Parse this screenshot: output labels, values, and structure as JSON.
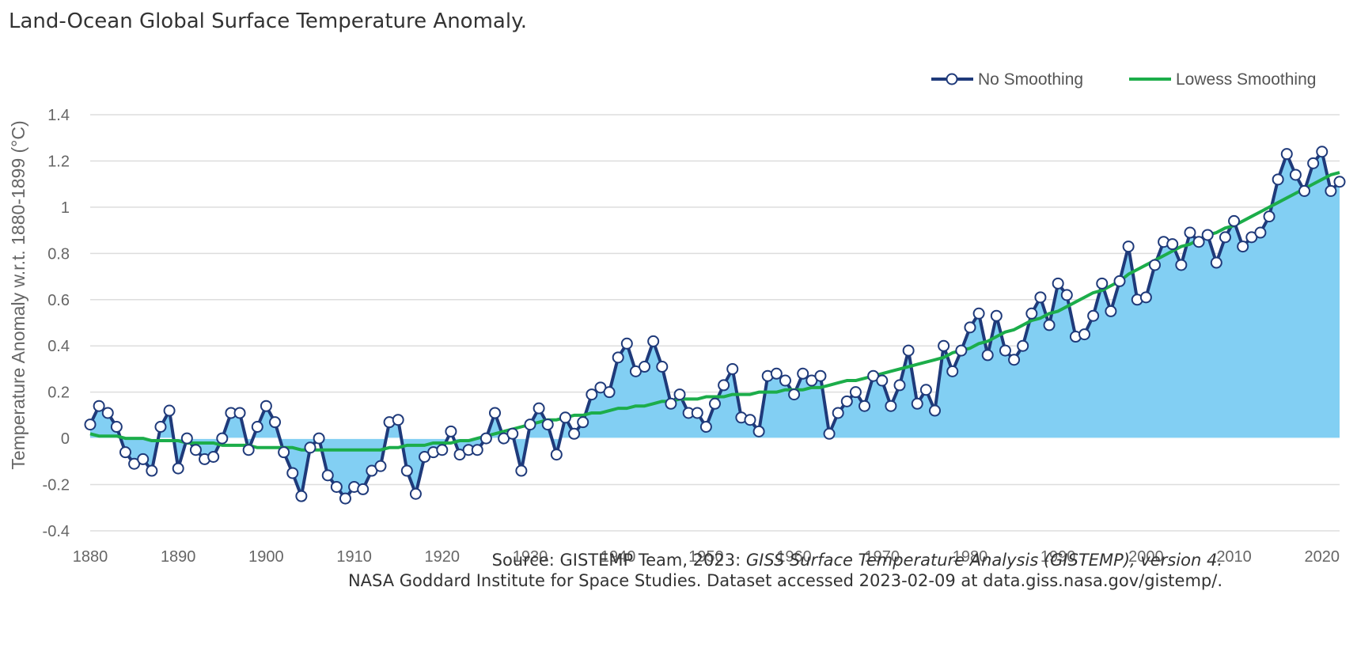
{
  "title": "Land-Ocean Global Surface Temperature Anomaly.",
  "source": {
    "line1_prefix": "Source: GISTEMP Team, 2023: ",
    "line1_italic": "GISS Surface Temperature Analysis (GISTEMP), version 4.",
    "line2": "NASA Goddard Institute for Space Studies. Dataset accessed 2023-02-09 at data.giss.nasa.gov/gistemp/."
  },
  "chart_data": {
    "type": "line",
    "xlabel": "",
    "ylabel": "Temperature Anomaly w.r.t. 1880-1899 (°C)",
    "xlim": [
      1880,
      2022
    ],
    "ylim": [
      -0.4,
      1.4
    ],
    "x_ticks": [
      "1880",
      "1890",
      "1900",
      "1910",
      "1920",
      "1930",
      "1940",
      "1950",
      "1960",
      "1970",
      "1980",
      "1990",
      "2000",
      "2010",
      "2020"
    ],
    "y_ticks": [
      "1.4",
      "1.2",
      "1",
      "0.8",
      "0.6",
      "0.4",
      "0.2",
      "0",
      "-0.2",
      "-0.4"
    ],
    "legend_position": "top-right",
    "grid": true,
    "colors": {
      "raw_line": "#1f3a7a",
      "fill": "#82cff3",
      "smooth_line": "#1cad4a",
      "grid": "#dddddd",
      "marker_fill": "#ffffff"
    },
    "x": [
      1880,
      1881,
      1882,
      1883,
      1884,
      1885,
      1886,
      1887,
      1888,
      1889,
      1890,
      1891,
      1892,
      1893,
      1894,
      1895,
      1896,
      1897,
      1898,
      1899,
      1900,
      1901,
      1902,
      1903,
      1904,
      1905,
      1906,
      1907,
      1908,
      1909,
      1910,
      1911,
      1912,
      1913,
      1914,
      1915,
      1916,
      1917,
      1918,
      1919,
      1920,
      1921,
      1922,
      1923,
      1924,
      1925,
      1926,
      1927,
      1928,
      1929,
      1930,
      1931,
      1932,
      1933,
      1934,
      1935,
      1936,
      1937,
      1938,
      1939,
      1940,
      1941,
      1942,
      1943,
      1944,
      1945,
      1946,
      1947,
      1948,
      1949,
      1950,
      1951,
      1952,
      1953,
      1954,
      1955,
      1956,
      1957,
      1958,
      1959,
      1960,
      1961,
      1962,
      1963,
      1964,
      1965,
      1966,
      1967,
      1968,
      1969,
      1970,
      1971,
      1972,
      1973,
      1974,
      1975,
      1976,
      1977,
      1978,
      1979,
      1980,
      1981,
      1982,
      1983,
      1984,
      1985,
      1986,
      1987,
      1988,
      1989,
      1990,
      1991,
      1992,
      1993,
      1994,
      1995,
      1996,
      1997,
      1998,
      1999,
      2000,
      2001,
      2002,
      2003,
      2004,
      2005,
      2006,
      2007,
      2008,
      2009,
      2010,
      2011,
      2012,
      2013,
      2014,
      2015,
      2016,
      2017,
      2018,
      2019,
      2020,
      2021,
      2022
    ],
    "series": [
      {
        "name": "No Smoothing",
        "values": [
          0.06,
          0.14,
          0.11,
          0.05,
          -0.06,
          -0.11,
          -0.09,
          -0.14,
          0.05,
          0.12,
          -0.13,
          0.0,
          -0.05,
          -0.09,
          -0.08,
          0.0,
          0.11,
          0.11,
          -0.05,
          0.05,
          0.14,
          0.07,
          -0.06,
          -0.15,
          -0.25,
          -0.04,
          0.0,
          -0.16,
          -0.21,
          -0.26,
          -0.21,
          -0.22,
          -0.14,
          -0.12,
          0.07,
          0.08,
          -0.14,
          -0.24,
          -0.08,
          -0.06,
          -0.05,
          0.03,
          -0.07,
          -0.05,
          -0.05,
          0.0,
          0.11,
          0.0,
          0.02,
          -0.14,
          0.06,
          0.13,
          0.06,
          -0.07,
          0.09,
          0.02,
          0.07,
          0.19,
          0.22,
          0.2,
          0.35,
          0.41,
          0.29,
          0.31,
          0.42,
          0.31,
          0.15,
          0.19,
          0.11,
          0.11,
          0.05,
          0.15,
          0.23,
          0.3,
          0.09,
          0.08,
          0.03,
          0.27,
          0.28,
          0.25,
          0.19,
          0.28,
          0.25,
          0.27,
          0.02,
          0.11,
          0.16,
          0.2,
          0.14,
          0.27,
          0.25,
          0.14,
          0.23,
          0.38,
          0.15,
          0.21,
          0.12,
          0.4,
          0.29,
          0.38,
          0.48,
          0.54,
          0.36,
          0.53,
          0.38,
          0.34,
          0.4,
          0.54,
          0.61,
          0.49,
          0.67,
          0.62,
          0.44,
          0.45,
          0.53,
          0.67,
          0.55,
          0.68,
          0.83,
          0.6,
          0.61,
          0.75,
          0.85,
          0.84,
          0.75,
          0.89,
          0.85,
          0.88,
          0.76,
          0.87,
          0.94,
          0.83,
          0.87,
          0.89,
          0.96,
          1.12,
          1.23,
          1.14,
          1.07,
          1.19,
          1.24,
          1.07,
          1.11
        ]
      },
      {
        "name": "Lowess Smoothing",
        "values": [
          0.02,
          0.01,
          0.01,
          0.01,
          0.0,
          0.0,
          0.0,
          -0.01,
          -0.01,
          -0.01,
          -0.01,
          -0.02,
          -0.02,
          -0.02,
          -0.02,
          -0.03,
          -0.03,
          -0.03,
          -0.03,
          -0.04,
          -0.04,
          -0.04,
          -0.04,
          -0.04,
          -0.05,
          -0.05,
          -0.05,
          -0.05,
          -0.05,
          -0.05,
          -0.05,
          -0.05,
          -0.05,
          -0.05,
          -0.04,
          -0.04,
          -0.03,
          -0.03,
          -0.03,
          -0.02,
          -0.02,
          -0.02,
          -0.01,
          -0.01,
          0.0,
          0.01,
          0.02,
          0.03,
          0.04,
          0.05,
          0.06,
          0.07,
          0.08,
          0.08,
          0.09,
          0.1,
          0.1,
          0.11,
          0.11,
          0.12,
          0.13,
          0.13,
          0.14,
          0.14,
          0.15,
          0.16,
          0.16,
          0.17,
          0.17,
          0.17,
          0.18,
          0.18,
          0.18,
          0.19,
          0.19,
          0.19,
          0.2,
          0.2,
          0.2,
          0.21,
          0.21,
          0.21,
          0.22,
          0.22,
          0.23,
          0.24,
          0.25,
          0.25,
          0.26,
          0.27,
          0.28,
          0.29,
          0.3,
          0.31,
          0.32,
          0.33,
          0.34,
          0.35,
          0.37,
          0.38,
          0.39,
          0.41,
          0.42,
          0.44,
          0.46,
          0.47,
          0.49,
          0.51,
          0.52,
          0.54,
          0.55,
          0.57,
          0.59,
          0.61,
          0.63,
          0.64,
          0.66,
          0.68,
          0.71,
          0.73,
          0.75,
          0.77,
          0.79,
          0.81,
          0.83,
          0.84,
          0.86,
          0.88,
          0.89,
          0.91,
          0.92,
          0.94,
          0.96,
          0.98,
          1.0,
          1.02,
          1.04,
          1.06,
          1.08,
          1.1,
          1.12,
          1.14,
          1.15
        ]
      }
    ]
  }
}
